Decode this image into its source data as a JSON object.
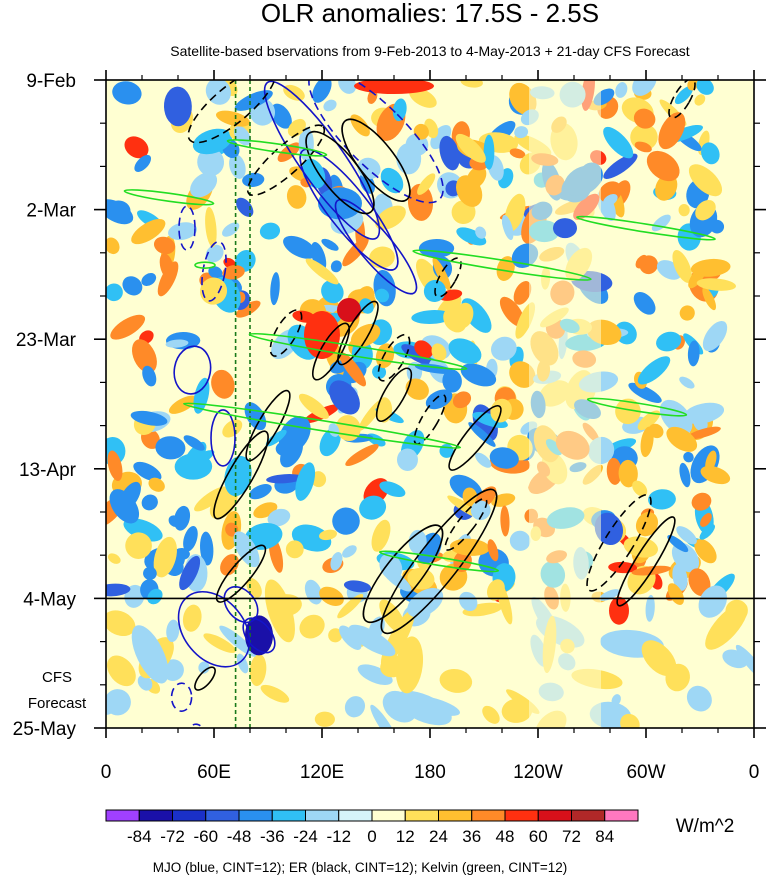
{
  "chart_data": {
    "type": "heatmap",
    "title": "OLR anomalies: 17.5S - 2.5S",
    "subtitle": "Satellite-based bservations from 9-Feb-2013 to 4-May-2013 + 21-day CFS Forecast",
    "xlabel": "",
    "ylabel": "",
    "x_ticks": [
      "0",
      "60E",
      "120E",
      "180",
      "120W",
      "60W",
      "0"
    ],
    "x_range_deg_east": [
      0,
      360
    ],
    "y_ticks": [
      "9-Feb",
      "2-Mar",
      "23-Mar",
      "13-Apr",
      "4-May",
      "25-May"
    ],
    "y_range": [
      "2013-02-09",
      "2013-05-25"
    ],
    "observation_end": "2013-05-04",
    "forecast_label": [
      "CFS",
      "Forecast"
    ],
    "colorbar": {
      "labels": [
        "-84",
        "-72",
        "-60",
        "-48",
        "-36",
        "-24",
        "-12",
        "0",
        "12",
        "24",
        "36",
        "48",
        "60",
        "72",
        "84"
      ],
      "units": "W/m^2",
      "colors": [
        "#a040ff",
        "#1a10a8",
        "#1a30c8",
        "#3060e0",
        "#2a90ef",
        "#30c0f5",
        "#9ed7f5",
        "#d6f4fa",
        "#ffffd2",
        "#ffe05a",
        "#ffbf30",
        "#ff8a28",
        "#ff3010",
        "#d8101a",
        "#b02828",
        "#ff78c0"
      ]
    },
    "contour_legend": "MJO (blue, CINT=12); ER (black, CINT=12); Kelvin (green, CINT=12)",
    "mjo_color": "#1414c8",
    "er_color": "#000000",
    "kelvin_color": "#22dd22",
    "reference_lines_deg_east": [
      72,
      80
    ]
  }
}
